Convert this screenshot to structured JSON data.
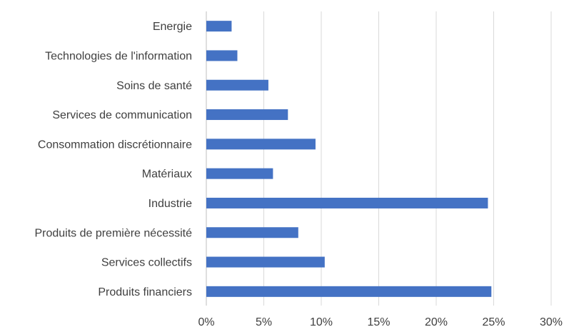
{
  "chart_data": {
    "type": "bar",
    "orientation": "horizontal",
    "title": "",
    "xlabel": "",
    "ylabel": "",
    "categories": [
      "Energie",
      "Technologies de l'information",
      "Soins de santé",
      "Services de communication",
      "Consommation discrétionnaire",
      "Matériaux",
      "Industrie",
      "Produits de première nécessité",
      "Services collectifs",
      "Produits financiers"
    ],
    "values": [
      2.2,
      2.7,
      5.4,
      7.1,
      9.5,
      5.8,
      24.5,
      8.0,
      10.3,
      24.8
    ],
    "value_unit": "%",
    "xlim": [
      0,
      30
    ],
    "x_ticks": [
      0,
      5,
      10,
      15,
      20,
      25,
      30
    ],
    "x_tick_labels": [
      "0%",
      "5%",
      "10%",
      "15%",
      "20%",
      "25%",
      "30%"
    ],
    "grid": true,
    "legend": "none",
    "bar_color": "#4472c4"
  }
}
